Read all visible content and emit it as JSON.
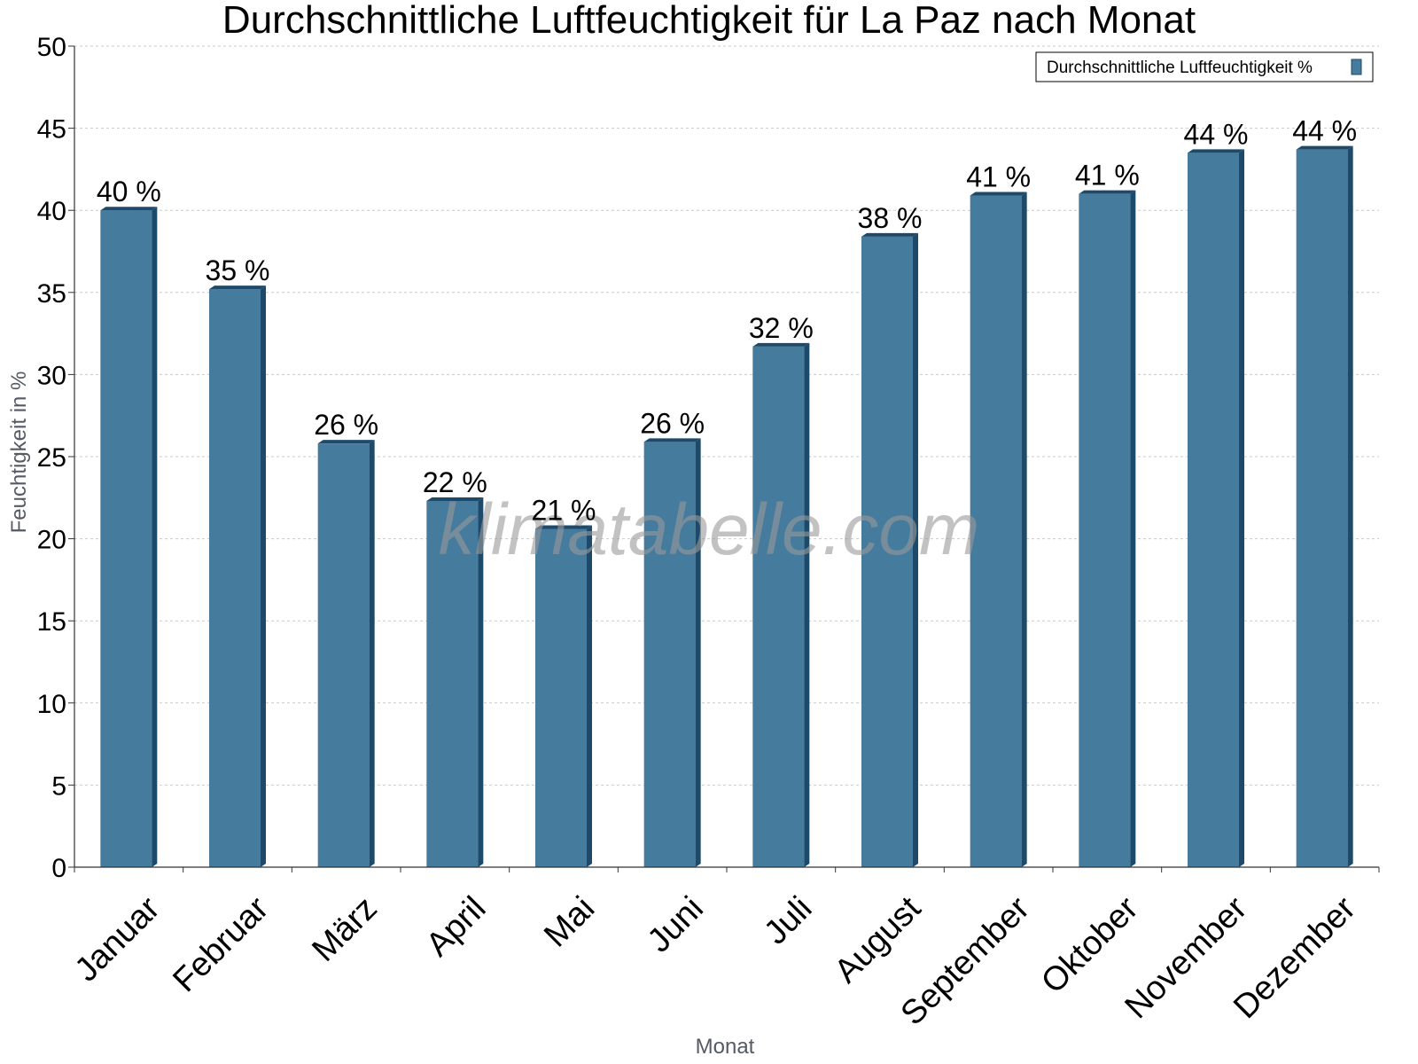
{
  "chart_data": {
    "type": "bar",
    "title": "Durchschnittliche Luftfeuchtigkeit für La Paz nach Monat",
    "xlabel": "Monat",
    "ylabel": "Feuchtigkeit in %",
    "categories": [
      "Januar",
      "Februar",
      "März",
      "April",
      "Mai",
      "Juni",
      "Juli",
      "August",
      "September",
      "Oktober",
      "November",
      "Dezember"
    ],
    "series": [
      {
        "name": "Durchschnittliche Luftfeuchtigkeit %",
        "values": [
          40,
          35.2,
          25.8,
          22.3,
          20.6,
          25.9,
          31.7,
          38.4,
          40.9,
          41.0,
          43.5,
          43.7
        ],
        "data_labels": [
          "40 %",
          "35 %",
          "26 %",
          "22 %",
          "21 %",
          "26 %",
          "32 %",
          "38 %",
          "41 %",
          "41 %",
          "44 %",
          "44 %"
        ],
        "color": "#457b9d",
        "side_color": "#1d4a6a"
      }
    ],
    "ylim": [
      0,
      50
    ],
    "yticks": [
      0,
      5,
      10,
      15,
      20,
      25,
      30,
      35,
      40,
      45,
      50
    ],
    "grid": true,
    "legend_position": "top-right",
    "watermark": "klimatabelle.com"
  }
}
